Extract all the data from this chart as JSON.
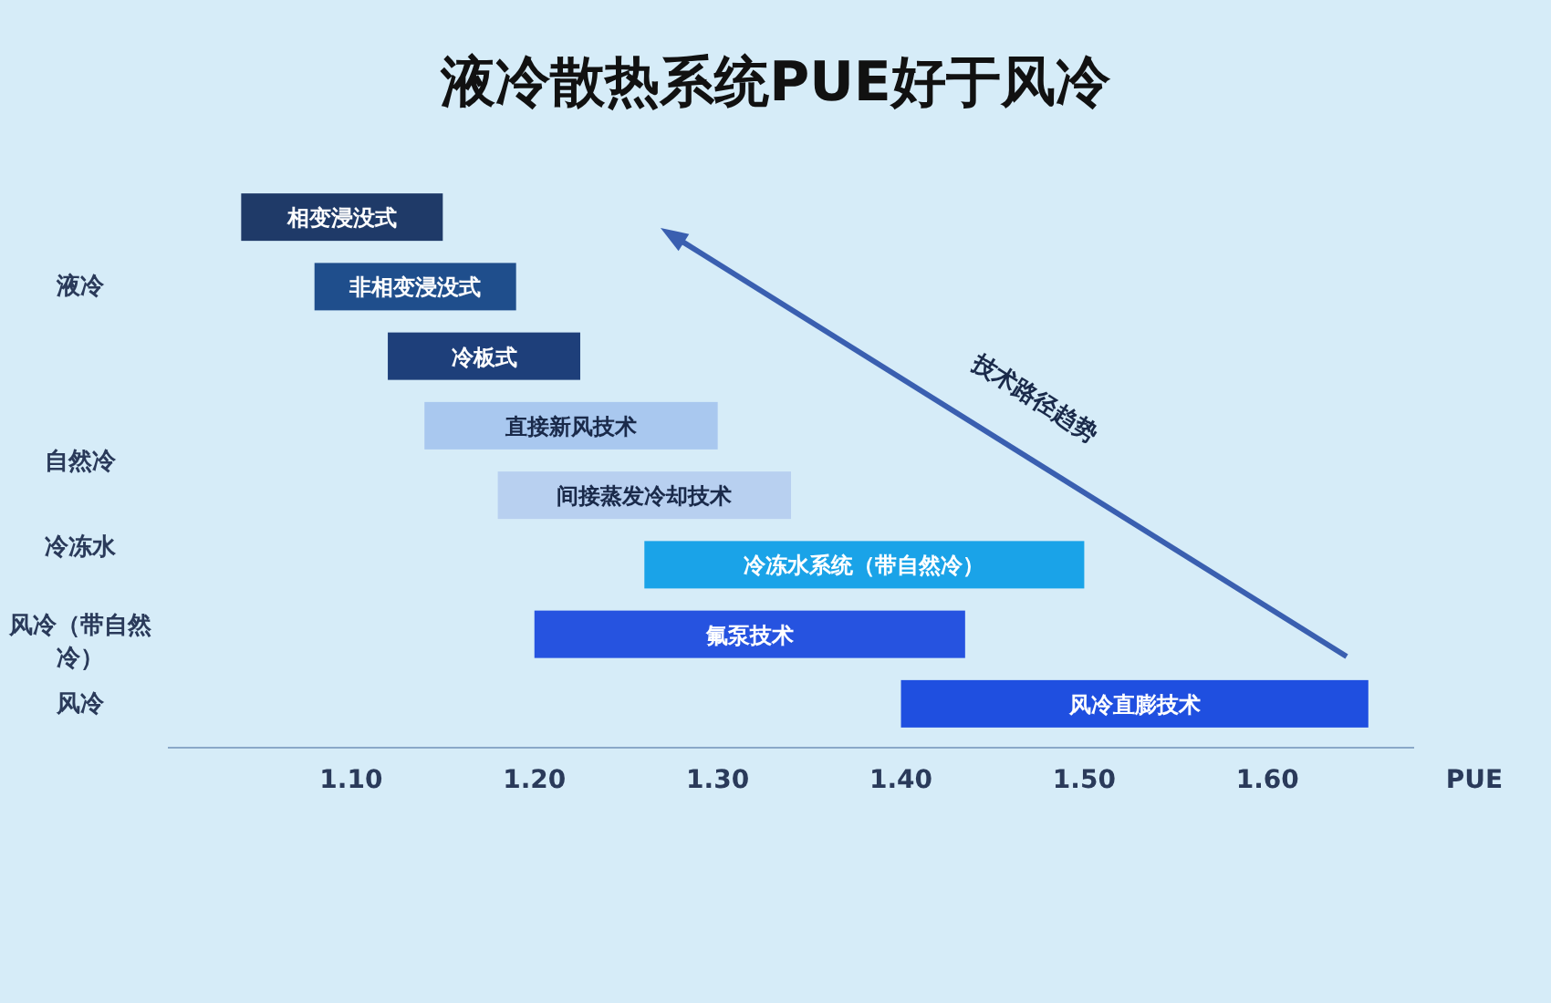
{
  "chart_data": {
    "type": "bar",
    "orientation": "horizontal",
    "title": "液冷散热系统PUE好于风冷",
    "xlabel": "PUE",
    "categories": [
      "相变浸没式",
      "非相变浸没式",
      "冷板式",
      "直接新风技术",
      "间接蒸发冷却技术",
      "冷冻水系统（带自然冷）",
      "氟泵技术",
      "风冷直膨技术"
    ],
    "base": [
      1.04,
      1.08,
      1.12,
      1.14,
      1.18,
      1.26,
      1.2,
      1.4
    ],
    "values": [
      0.11,
      0.11,
      0.105,
      0.16,
      0.16,
      0.24,
      0.235,
      0.255
    ],
    "colors": [
      "#1f3a68",
      "#1f4e8c",
      "#1e3f7a",
      "#a9c8ef",
      "#b8d0f0",
      "#1aa3e8",
      "#2653e0",
      "#1f4fe0"
    ],
    "xlim": [
      1.0,
      1.68
    ],
    "xticks": [
      {
        "value": 1.1,
        "label": "1.10"
      },
      {
        "value": 1.2,
        "label": "1.20"
      },
      {
        "value": 1.3,
        "label": "1.30"
      },
      {
        "value": 1.4,
        "label": "1.40"
      },
      {
        "value": 1.5,
        "label": "1.50"
      },
      {
        "value": 1.6,
        "label": "1.60"
      }
    ],
    "annotations": [
      "液冷",
      "自然冷",
      "冷冻水",
      "风冷（带自然冷）",
      "风冷",
      "技术路径趋势"
    ]
  }
}
